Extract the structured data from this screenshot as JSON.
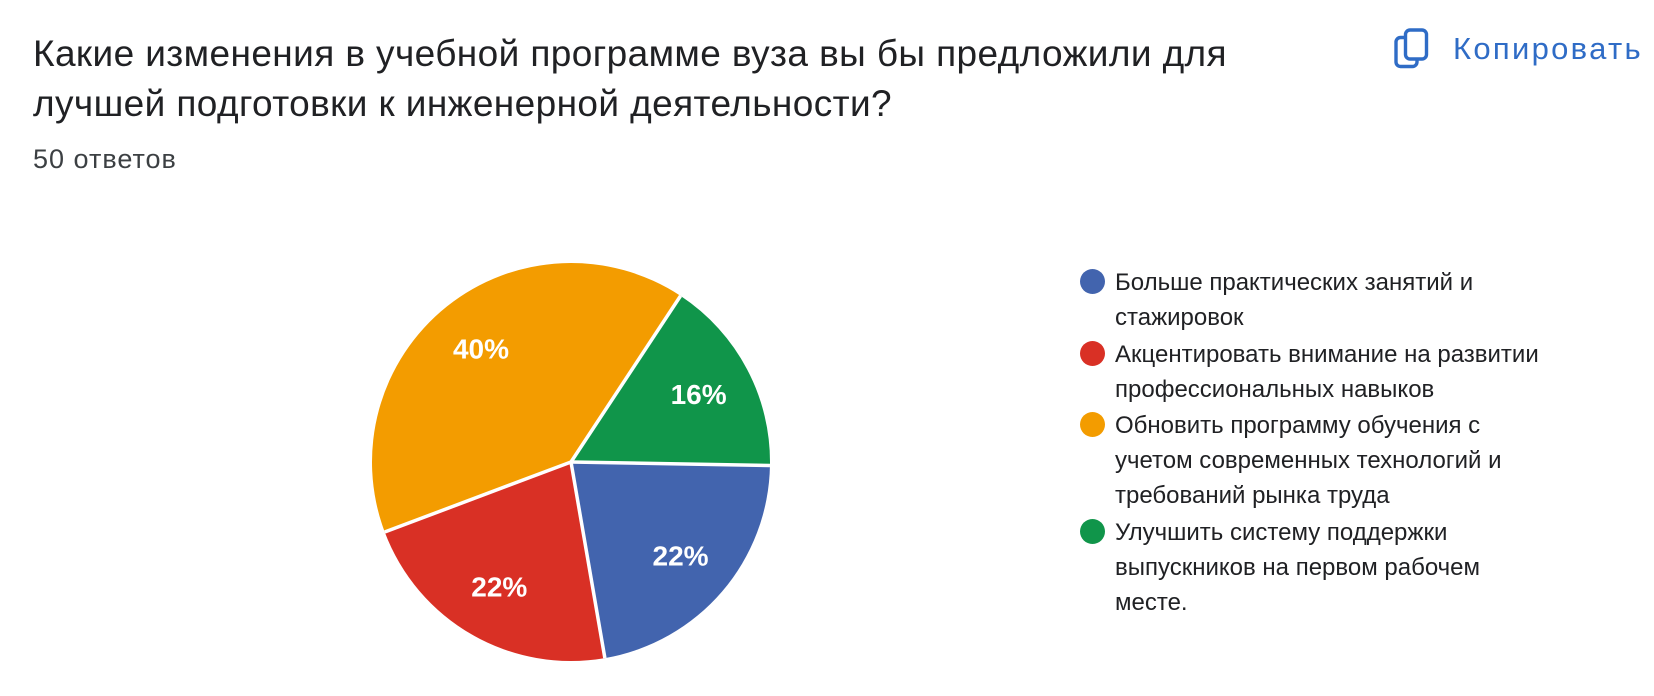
{
  "header": {
    "title": "Какие изменения в учебной программе вуза вы бы предложили для лучшей подготовки к инженерной деятельности?",
    "responses_count": "50 ответов",
    "copy_label": "Копировать",
    "accent_color": "#2f6cc6"
  },
  "chart_data": {
    "type": "pie",
    "total_responses": 50,
    "unit": "%",
    "rotation_deg": 91,
    "legend_position": "right",
    "slices": [
      {
        "label": "Больше практических занятий и стажировок",
        "value": 22,
        "percent_label": "22%",
        "color": "#4264AE",
        "legend_lines": [
          "Больше практических занятий и",
          "стажировок"
        ]
      },
      {
        "label": "Акцентировать внимание на развитии профессиональных навыков",
        "value": 22,
        "percent_label": "22%",
        "color": "#D93025",
        "legend_lines": [
          "Акцентировать внимание на развитии",
          "профессиональных навыков"
        ]
      },
      {
        "label": "Обновить программу обучения с учетом современных технологий и требований рынка труда",
        "value": 40,
        "percent_label": "40%",
        "color": "#F39C00",
        "legend_lines": [
          "Обновить программу обучения с",
          "учетом современных технологий и",
          "требований рынка труда"
        ]
      },
      {
        "label": "Улучшить систему поддержки выпускников на первом рабочем месте.",
        "value": 16,
        "percent_label": "16%",
        "color": "#10954A",
        "legend_lines": [
          "Улучшить систему поддержки",
          "выпускников на первом рабочем",
          "месте."
        ]
      }
    ]
  }
}
